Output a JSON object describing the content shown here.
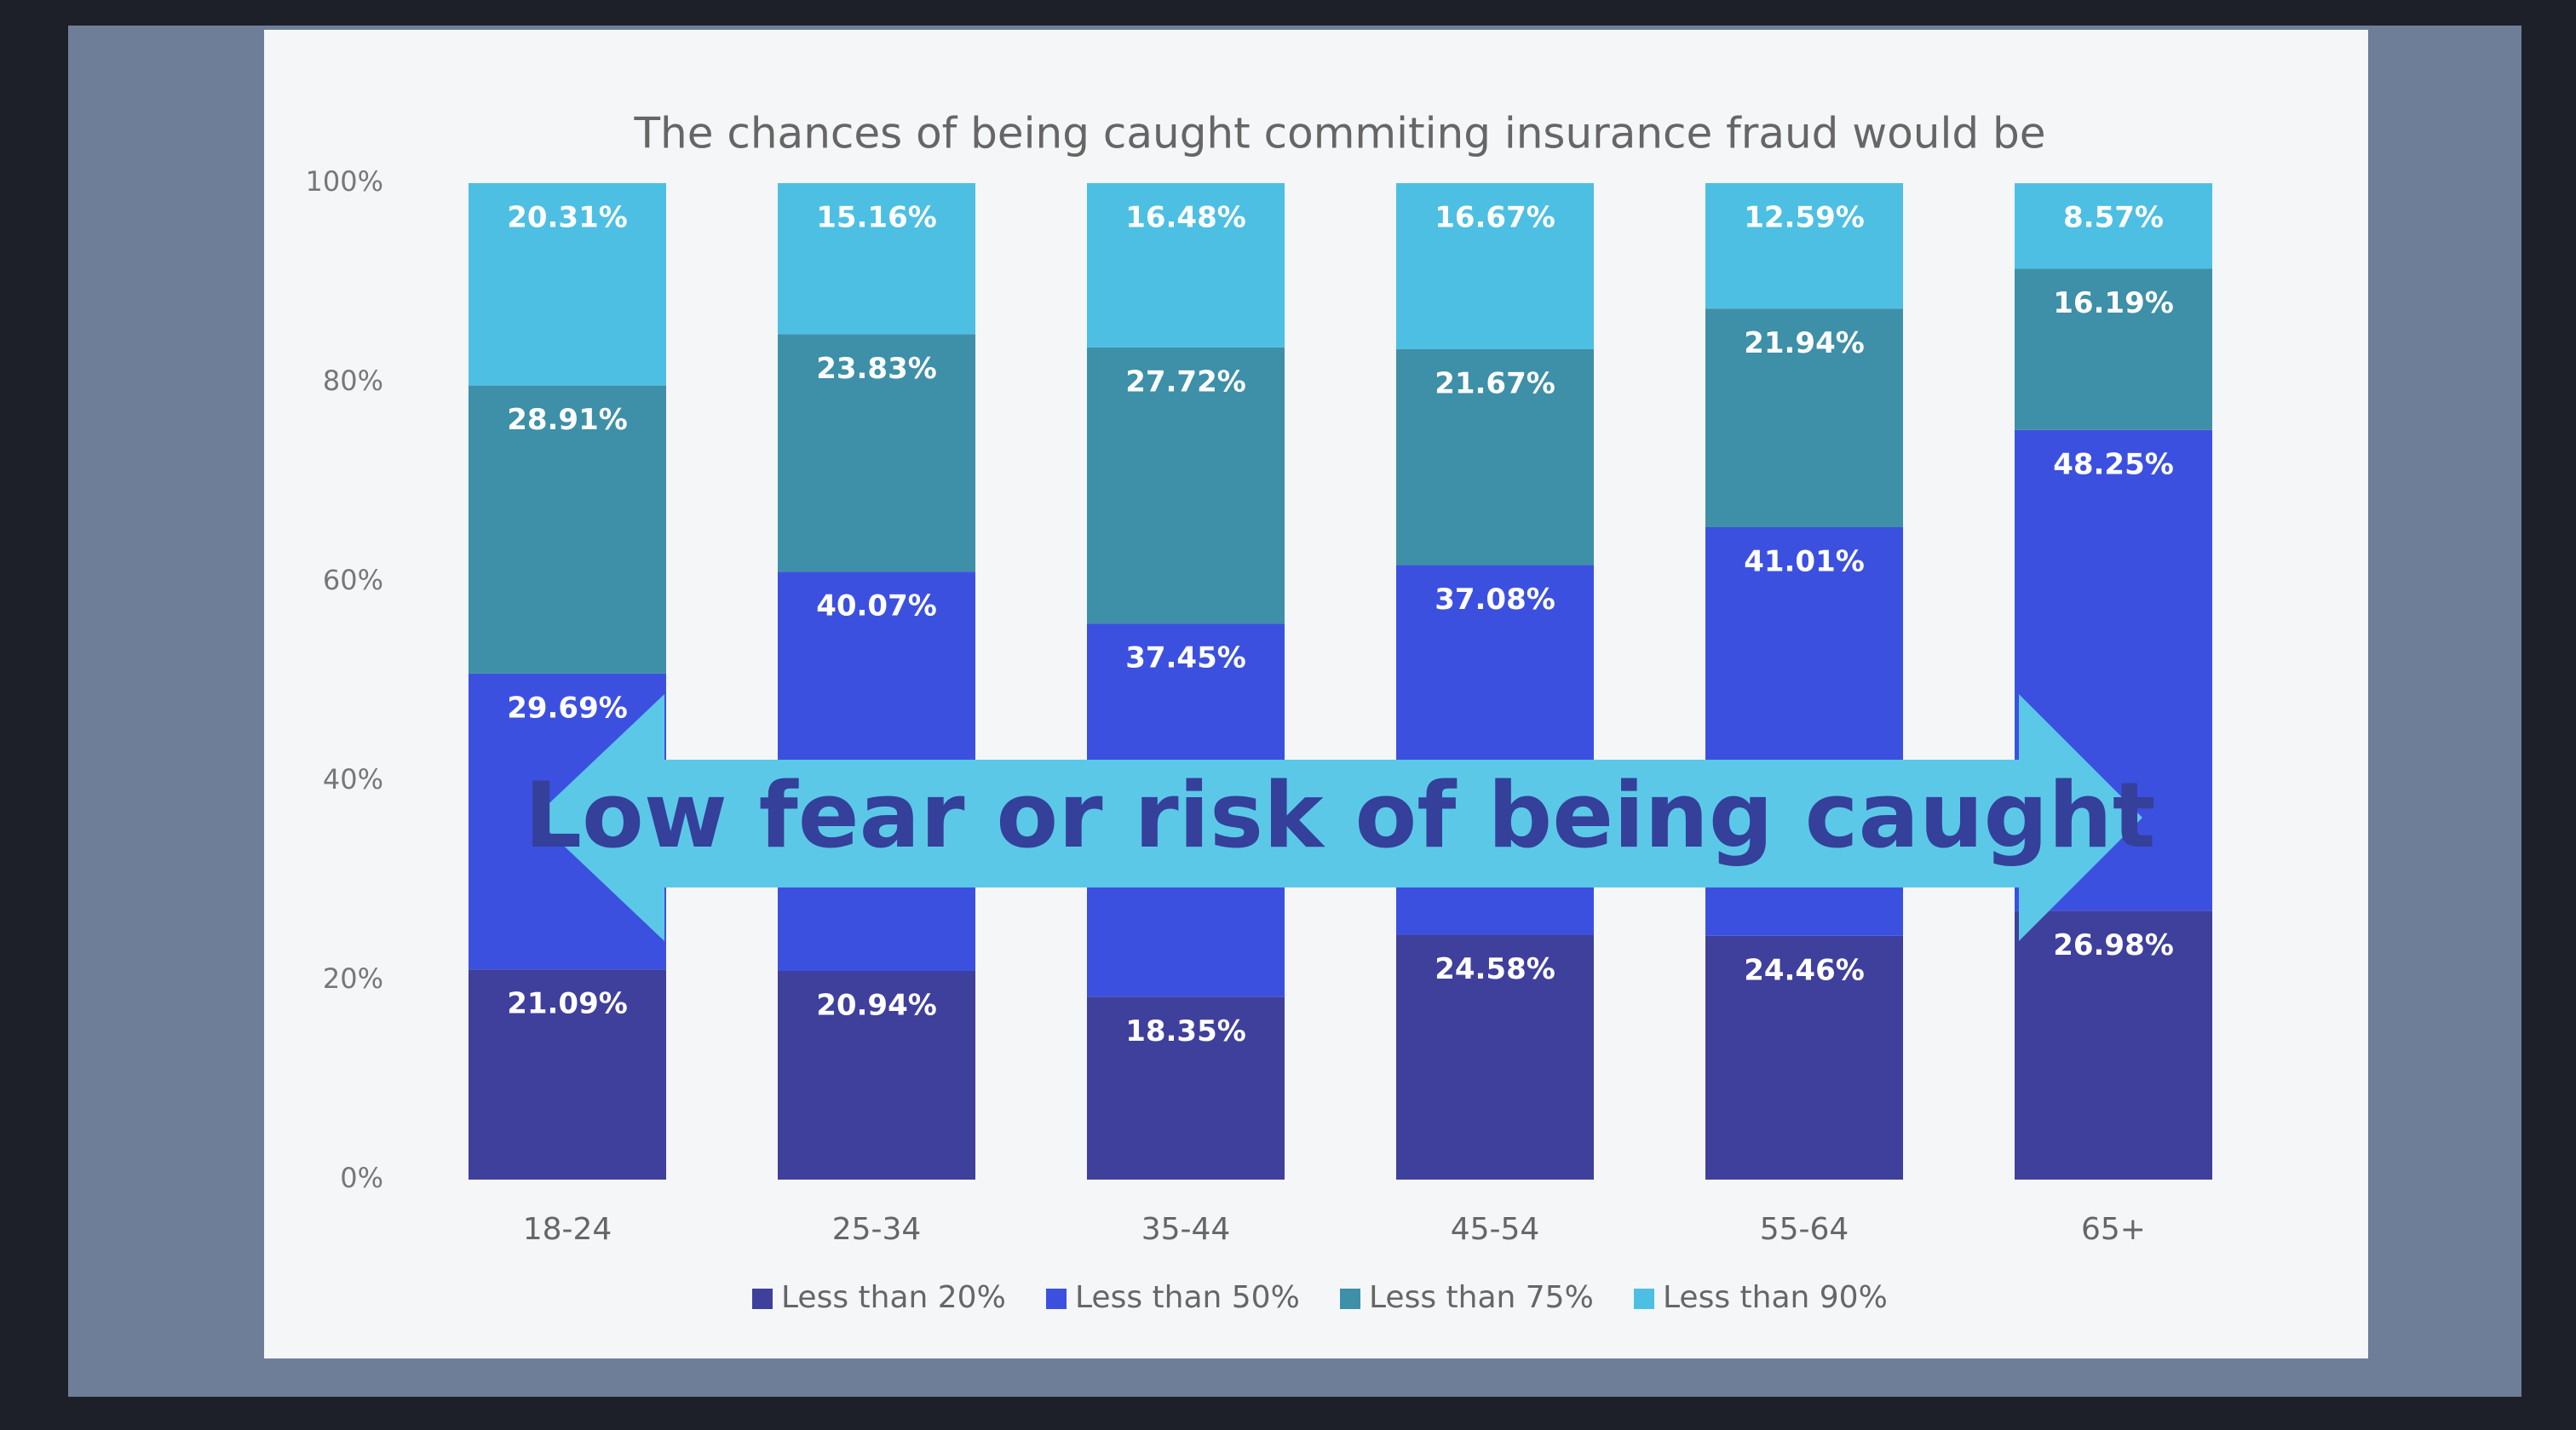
{
  "chart_data": {
    "type": "stacked_bar",
    "title": "The chances of being caught commiting insurance fraud would be",
    "annotation": "Low fear or risk of being caught",
    "categories": [
      "18-24",
      "25-34",
      "35-44",
      "45-54",
      "55-64",
      "65+"
    ],
    "series": [
      {
        "name": "Less than 20%",
        "color": "#3f3f9c",
        "values": [
          21.09,
          20.94,
          18.35,
          24.58,
          24.46,
          26.98
        ],
        "value_labels": [
          "21.09%",
          "20.94%",
          "18.35%",
          "24.58%",
          "24.46%",
          "26.98%"
        ]
      },
      {
        "name": "Less than 50%",
        "color": "#3c50e0",
        "values": [
          29.69,
          40.07,
          37.45,
          37.08,
          41.01,
          48.25
        ],
        "value_labels": [
          "29.69%",
          "40.07%",
          "37.45%",
          "37.08%",
          "41.01%",
          "48.25%"
        ]
      },
      {
        "name": "Less than 75%",
        "color": "#3e8fa8",
        "values": [
          28.91,
          23.83,
          27.72,
          21.67,
          21.94,
          16.19
        ],
        "value_labels": [
          "28.91%",
          "23.83%",
          "27.72%",
          "21.67%",
          "21.94%",
          "16.19%"
        ]
      },
      {
        "name": "Less than 90%",
        "color": "#4dbfe3",
        "values": [
          20.31,
          15.16,
          16.48,
          16.67,
          12.59,
          8.57
        ],
        "value_labels": [
          "20.31%",
          "15.16%",
          "16.48%",
          "16.67%",
          "12.59%",
          "8.57%"
        ]
      }
    ],
    "ylim": [
      0,
      100
    ],
    "yticks": [
      {
        "value": 0,
        "label": "0%"
      },
      {
        "value": 20,
        "label": "20%"
      },
      {
        "value": 40,
        "label": "40%"
      },
      {
        "value": 60,
        "label": "60%"
      },
      {
        "value": 80,
        "label": "80%"
      },
      {
        "value": 100,
        "label": "100%"
      }
    ],
    "legend": "bottom"
  }
}
